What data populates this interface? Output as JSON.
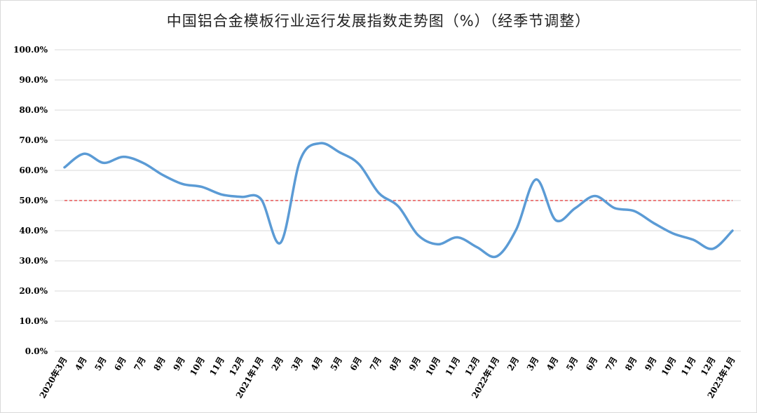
{
  "chart_data": {
    "type": "line",
    "title": "中国铝合金模板行业运行发展指数走势图（%）（经季节调整）",
    "xlabel": "",
    "ylabel": "",
    "ylim": [
      0,
      100
    ],
    "y_tick_labels": [
      "0.0%",
      "10.0%",
      "20.0%",
      "30.0%",
      "40.0%",
      "50.0%",
      "60.0%",
      "70.0%",
      "80.0%",
      "90.0%",
      "100.0%"
    ],
    "categories": [
      "2020年3月",
      "4月",
      "5月",
      "6月",
      "7月",
      "8月",
      "9月",
      "10月",
      "11月",
      "12月",
      "2021年1月",
      "2月",
      "3月",
      "4月",
      "5月",
      "6月",
      "7月",
      "8月",
      "9月",
      "10月",
      "11月",
      "12月",
      "2022年1月",
      "2月",
      "3月",
      "4月",
      "5月",
      "6月",
      "7月",
      "8月",
      "9月",
      "10月",
      "11月",
      "12月",
      "2023年1月"
    ],
    "series": [
      {
        "values": [
          61.0,
          65.5,
          62.5,
          64.5,
          62.5,
          58.5,
          55.5,
          54.5,
          52.0,
          51.2,
          50.5,
          36.0,
          63.5,
          69.0,
          66.0,
          62.0,
          52.5,
          48.0,
          38.5,
          35.5,
          37.8,
          34.5,
          31.5,
          40.5,
          57.0,
          43.5,
          47.5,
          51.5,
          47.5,
          46.5,
          42.5,
          39.0,
          37.0,
          34.0,
          40.0
        ],
        "color": "#5b9bd5"
      }
    ],
    "reference_line": {
      "value": 50,
      "color": "#e03030",
      "style": "dashed"
    },
    "grid": true,
    "legend": "none"
  }
}
